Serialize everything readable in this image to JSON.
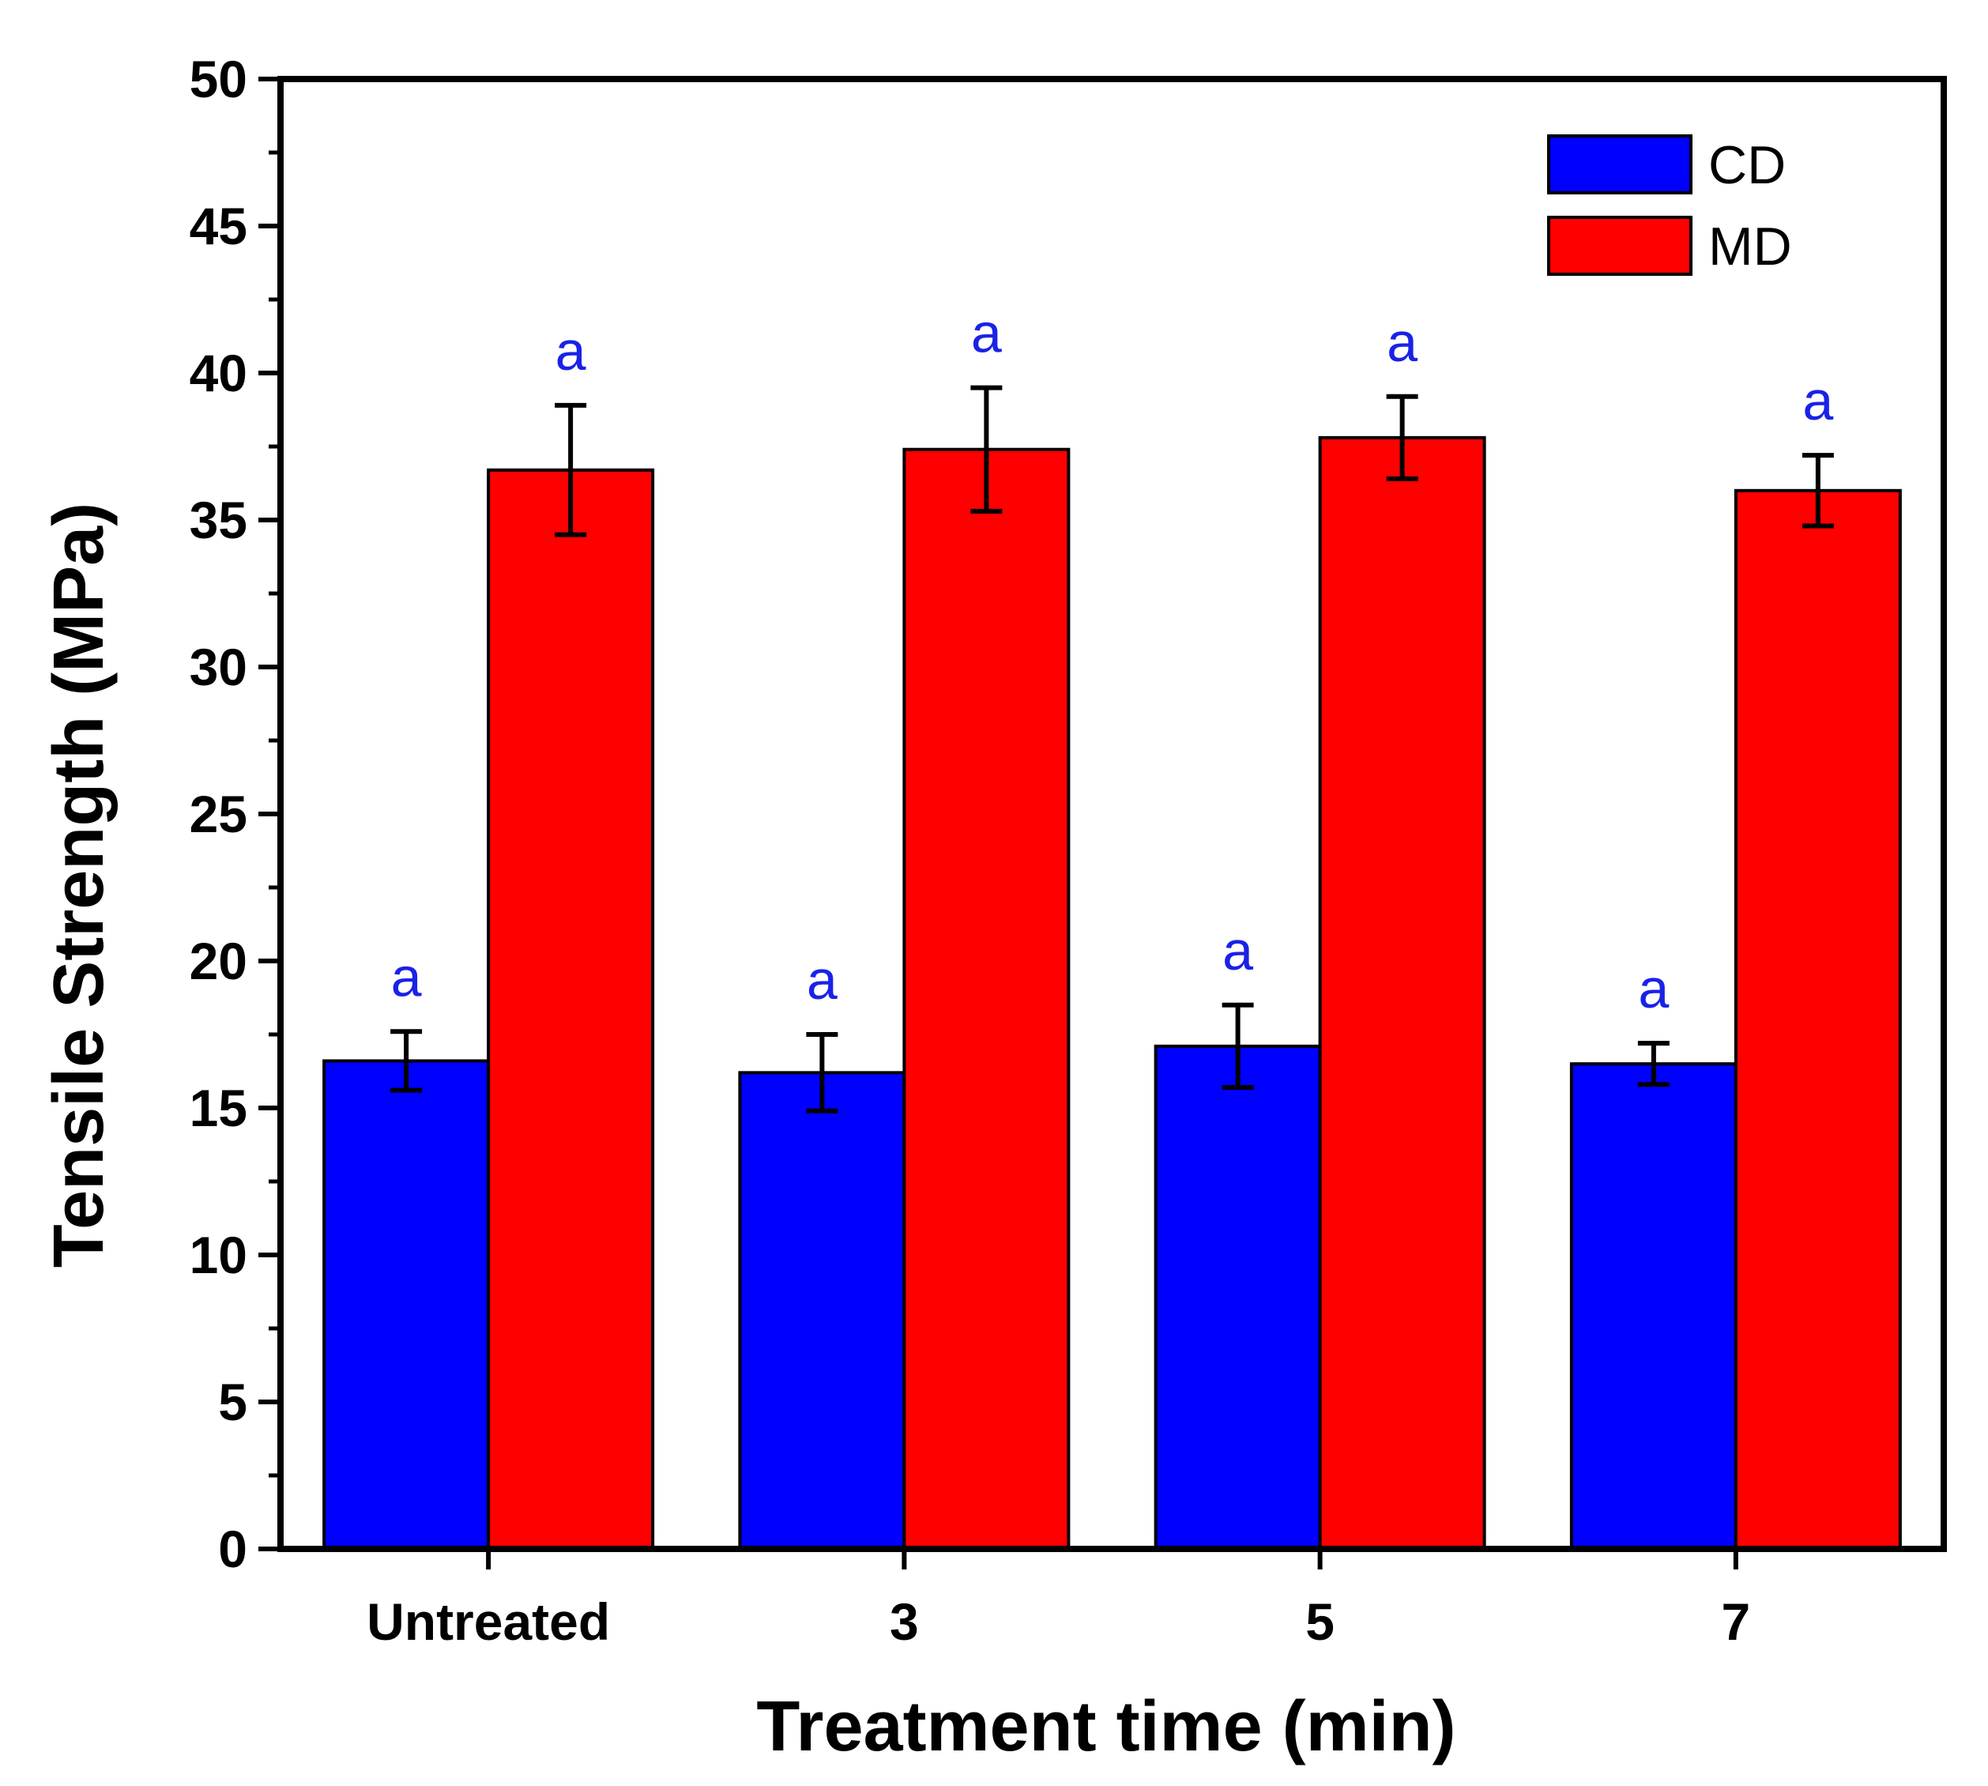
{
  "chart_data": {
    "type": "bar",
    "title": "",
    "xlabel": "Treatment time (min)",
    "ylabel": "Tensile Strength (MPa)",
    "ylim": [
      0,
      50
    ],
    "yticks": [
      "0",
      "5",
      "10",
      "15",
      "20",
      "25",
      "30",
      "35",
      "40",
      "45",
      "50"
    ],
    "categories": [
      "Untreated",
      "3",
      "5",
      "7"
    ],
    "grid": false,
    "legend_position": "top-right",
    "series": [
      {
        "name": "CD",
        "color": "#0000ff",
        "values": [
          16.6,
          16.2,
          17.1,
          16.5
        ],
        "errors": [
          1.0,
          1.3,
          1.4,
          0.7
        ],
        "labels": [
          "a",
          "a",
          "a",
          "a"
        ]
      },
      {
        "name": "MD",
        "color": "#ff0000",
        "values": [
          36.7,
          37.4,
          37.8,
          36.0
        ],
        "errors": [
          2.2,
          2.1,
          1.4,
          1.2
        ],
        "labels": [
          "a",
          "a",
          "a",
          "a"
        ]
      }
    ]
  }
}
